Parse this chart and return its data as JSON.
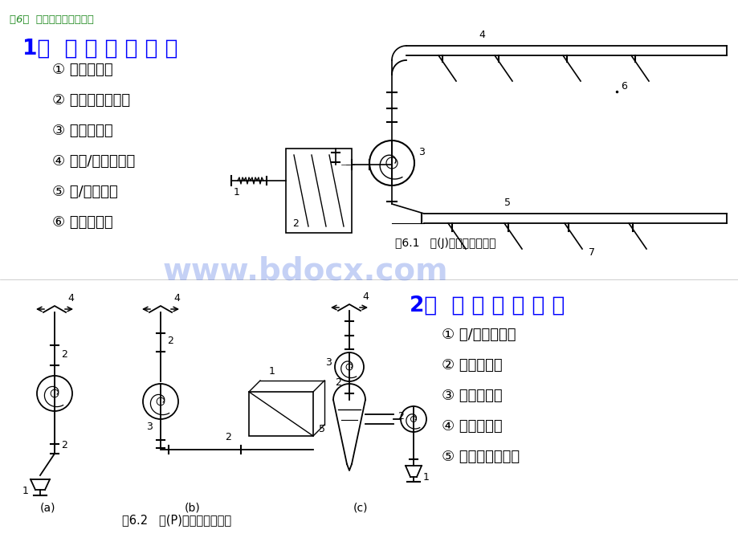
{
  "bg_color": "#ffffff",
  "header_text": "第6章  通风空调工程量计算",
  "header_color": "#228B22",
  "title1": "1）  送 风 系 统 组 成",
  "title1_color": "#0000FF",
  "title2": "2）  排 风 系 统 组 成",
  "title2_color": "#0000FF",
  "items1": [
    "① 进风装置；",
    "② 空气处理装置；",
    "③ 送风机械；",
    "④ 送风/回风管道；",
    "⑤ 送/回风口；",
    "⑥ 管道部件；"
  ],
  "items2": [
    "① 排/吸风装置；",
    "② 排风管道；",
    "③ 排风设备；",
    "④ 净化装置；",
    "⑤ 其它管道部件。"
  ],
  "fig1_caption": "图6.1   送(J)风系统组成示意",
  "fig2_caption": "图6.2   排(P)风系统组成示意",
  "watermark": "www.bdocx.com",
  "watermark_color": "#4169E1"
}
